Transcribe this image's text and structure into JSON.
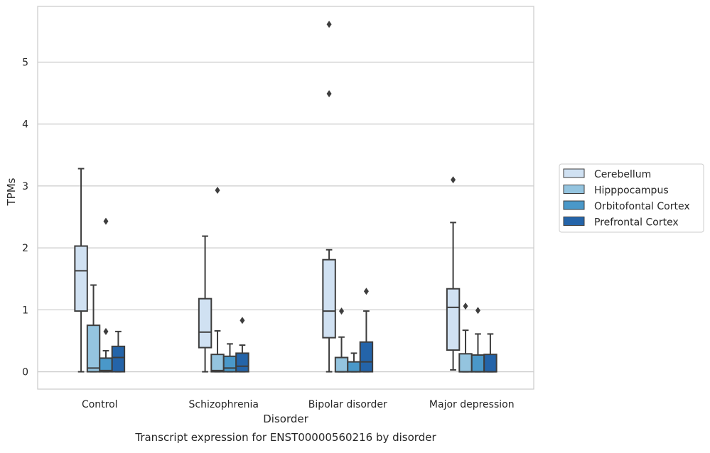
{
  "chart_data": {
    "type": "boxplot",
    "title": "Transcript expression for ENST00000560216 by disorder",
    "xlabel": "Disorder",
    "ylabel": "TPMs",
    "ylim": [
      -0.28,
      5.9
    ],
    "yticks": [
      0,
      1,
      2,
      3,
      4,
      5
    ],
    "categories": [
      "Control",
      "Schizophrenia",
      "Bipolar disorder",
      "Major depression"
    ],
    "grid": "horizontal",
    "legend_position": "right",
    "series": [
      {
        "name": "Cerebellum",
        "color": "#d0e1f2",
        "boxes": [
          {
            "whislo": 0.0,
            "q1": 0.98,
            "med": 1.63,
            "q3": 2.03,
            "whishi": 3.28,
            "fliers": []
          },
          {
            "whislo": 0.0,
            "q1": 0.39,
            "med": 0.64,
            "q3": 1.18,
            "whishi": 2.19,
            "fliers": []
          },
          {
            "whislo": 0.0,
            "q1": 0.55,
            "med": 0.98,
            "q3": 1.81,
            "whishi": 1.97,
            "fliers": [
              4.49,
              5.61
            ]
          },
          {
            "whislo": 0.03,
            "q1": 0.35,
            "med": 1.04,
            "q3": 1.34,
            "whishi": 2.41,
            "fliers": [
              3.1
            ]
          }
        ]
      },
      {
        "name": "Hipppocampus",
        "color": "#94c4df",
        "boxes": [
          {
            "whislo": 0.0,
            "q1": 0.0,
            "med": 0.06,
            "q3": 0.75,
            "whishi": 1.4,
            "fliers": []
          },
          {
            "whislo": 0.0,
            "q1": 0.0,
            "med": 0.02,
            "q3": 0.28,
            "whishi": 0.66,
            "fliers": [
              2.93
            ]
          },
          {
            "whislo": 0.0,
            "q1": 0.0,
            "med": 0.0,
            "q3": 0.23,
            "whishi": 0.56,
            "fliers": [
              0.98
            ]
          },
          {
            "whislo": 0.0,
            "q1": 0.0,
            "med": 0.0,
            "q3": 0.29,
            "whishi": 0.67,
            "fliers": [
              1.06
            ]
          }
        ]
      },
      {
        "name": "Orbitofontal Cortex",
        "color": "#4a98c9",
        "boxes": [
          {
            "whislo": 0.0,
            "q1": 0.0,
            "med": 0.02,
            "q3": 0.22,
            "whishi": 0.34,
            "fliers": [
              0.65,
              2.43
            ]
          },
          {
            "whislo": 0.0,
            "q1": 0.0,
            "med": 0.06,
            "q3": 0.25,
            "whishi": 0.45,
            "fliers": []
          },
          {
            "whislo": 0.0,
            "q1": 0.0,
            "med": 0.0,
            "q3": 0.16,
            "whishi": 0.3,
            "fliers": []
          },
          {
            "whislo": 0.0,
            "q1": 0.0,
            "med": 0.0,
            "q3": 0.27,
            "whishi": 0.61,
            "fliers": [
              0.99
            ]
          }
        ]
      },
      {
        "name": "Prefrontal Cortex",
        "color": "#2464a9",
        "boxes": [
          {
            "whislo": 0.0,
            "q1": 0.0,
            "med": 0.23,
            "q3": 0.41,
            "whishi": 0.65,
            "fliers": []
          },
          {
            "whislo": 0.0,
            "q1": 0.0,
            "med": 0.09,
            "q3": 0.3,
            "whishi": 0.43,
            "fliers": [
              0.83
            ]
          },
          {
            "whislo": 0.0,
            "q1": 0.0,
            "med": 0.16,
            "q3": 0.48,
            "whishi": 0.98,
            "fliers": [
              1.3
            ]
          },
          {
            "whislo": 0.0,
            "q1": 0.0,
            "med": 0.0,
            "q3": 0.28,
            "whishi": 0.61,
            "fliers": []
          }
        ]
      }
    ]
  }
}
